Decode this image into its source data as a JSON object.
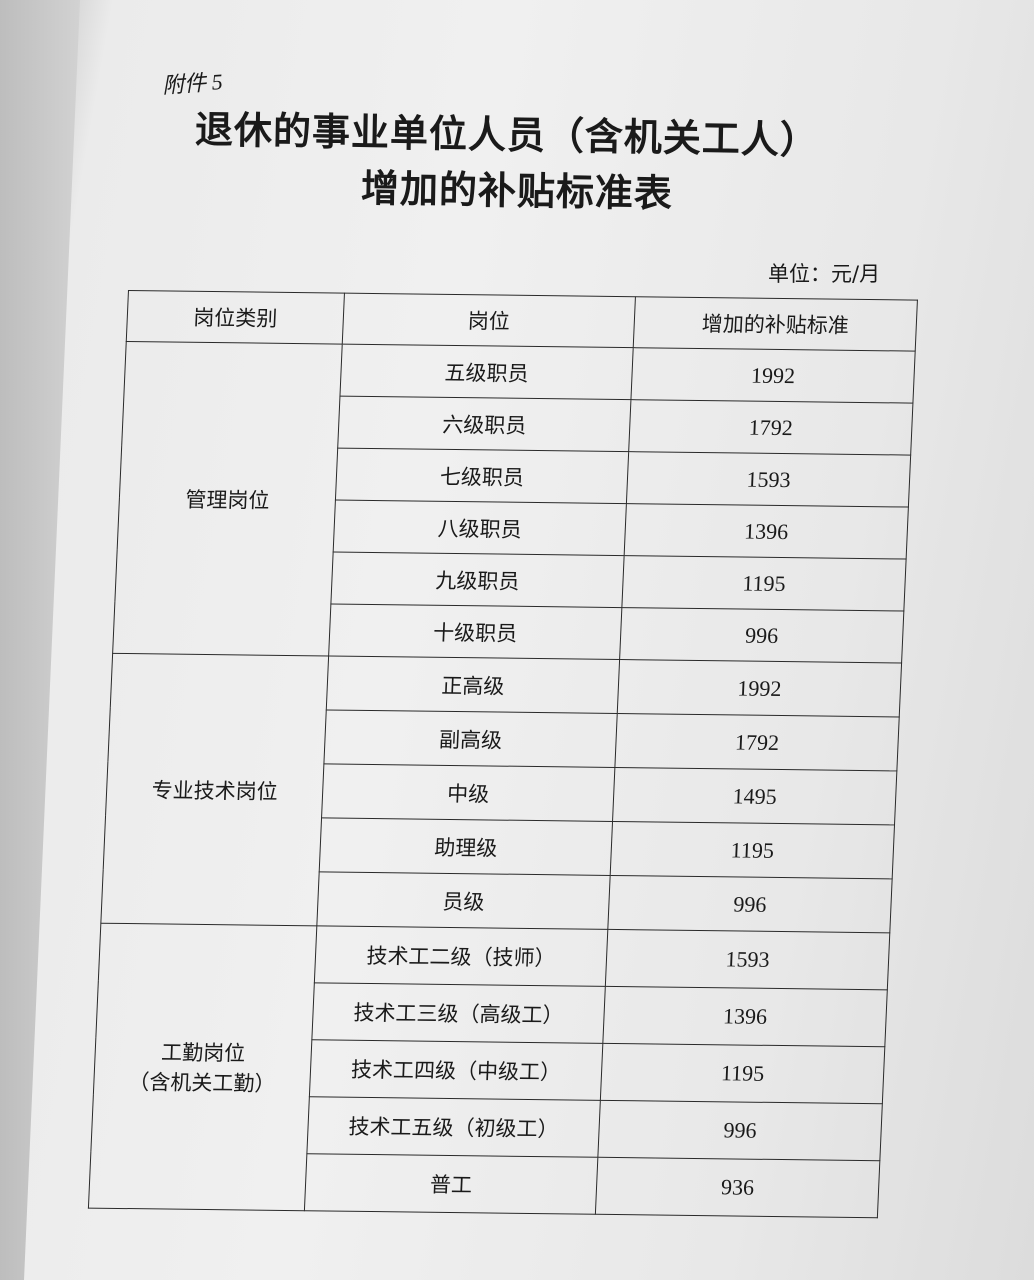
{
  "attachment": "附件 5",
  "title_line1": "退休的事业单位人员（含机关工人）",
  "title_line2": "增加的补贴标准表",
  "unit": "单位：元/月",
  "headers": [
    "岗位类别",
    "岗位",
    "增加的补贴标准"
  ],
  "groups": [
    {
      "category": "管理岗位",
      "rows": [
        [
          "五级职员",
          "1992"
        ],
        [
          "六级职员",
          "1792"
        ],
        [
          "七级职员",
          "1593"
        ],
        [
          "八级职员",
          "1396"
        ],
        [
          "九级职员",
          "1195"
        ],
        [
          "十级职员",
          "996"
        ]
      ]
    },
    {
      "category": "专业技术岗位",
      "rows": [
        [
          "正高级",
          "1992"
        ],
        [
          "副高级",
          "1792"
        ],
        [
          "中级",
          "1495"
        ],
        [
          "助理级",
          "1195"
        ],
        [
          "员级",
          "996"
        ]
      ]
    },
    {
      "category": "工勤岗位",
      "category_sub": "（含机关工勤）",
      "rows": [
        [
          "技术工二级（技师）",
          "1593"
        ],
        [
          "技术工三级（高级工）",
          "1396"
        ],
        [
          "技术工四级（中级工）",
          "1195"
        ],
        [
          "技术工五级（初级工）",
          "996"
        ],
        [
          "普工",
          "936"
        ]
      ]
    }
  ]
}
